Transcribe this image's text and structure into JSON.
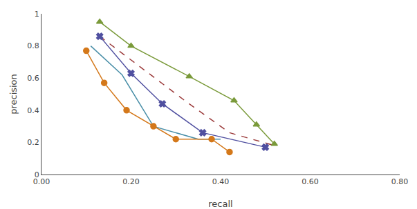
{
  "chart_data": {
    "type": "line",
    "xlabel": "recall",
    "ylabel": "precision",
    "xlim": [
      0.0,
      0.8
    ],
    "ylim": [
      0.0,
      1.0
    ],
    "xticks": [
      {
        "value": 0.0,
        "label": "0.00"
      },
      {
        "value": 0.2,
        "label": "0.20"
      },
      {
        "value": 0.4,
        "label": "0.40"
      },
      {
        "value": 0.6,
        "label": "0.60"
      },
      {
        "value": 0.8,
        "label": "0.80"
      }
    ],
    "yticks": [
      0,
      0.2,
      0.4,
      0.6,
      0.8,
      1
    ],
    "grid": false,
    "series": [
      {
        "color": "#7a9a3a",
        "line_style": "solid",
        "marker": "triangle",
        "x": [
          0.13,
          0.2,
          0.33,
          0.43,
          0.48,
          0.52
        ],
        "values": [
          0.95,
          0.8,
          0.61,
          0.46,
          0.31,
          0.19
        ]
      },
      {
        "color": "#9b3a3a",
        "line_style": "dashed",
        "x": [
          0.13,
          0.22,
          0.32,
          0.42,
          0.52
        ],
        "values": [
          0.86,
          0.67,
          0.46,
          0.26,
          0.18
        ]
      },
      {
        "color": "#5050a0",
        "line_style": "solid",
        "marker": "x",
        "x": [
          0.13,
          0.2,
          0.27,
          0.36,
          0.5
        ],
        "values": [
          0.86,
          0.63,
          0.44,
          0.26,
          0.17
        ]
      },
      {
        "color": "#4a8fa8",
        "line_style": "solid",
        "x": [
          0.11,
          0.18,
          0.25,
          0.35,
          0.4
        ],
        "values": [
          0.8,
          0.62,
          0.3,
          0.22,
          0.22
        ]
      },
      {
        "color": "#d4781a",
        "line_style": "solid",
        "marker": "circle",
        "x": [
          0.1,
          0.14,
          0.19,
          0.25,
          0.3,
          0.38,
          0.42
        ],
        "values": [
          0.77,
          0.57,
          0.4,
          0.3,
          0.22,
          0.22,
          0.14
        ]
      }
    ]
  }
}
